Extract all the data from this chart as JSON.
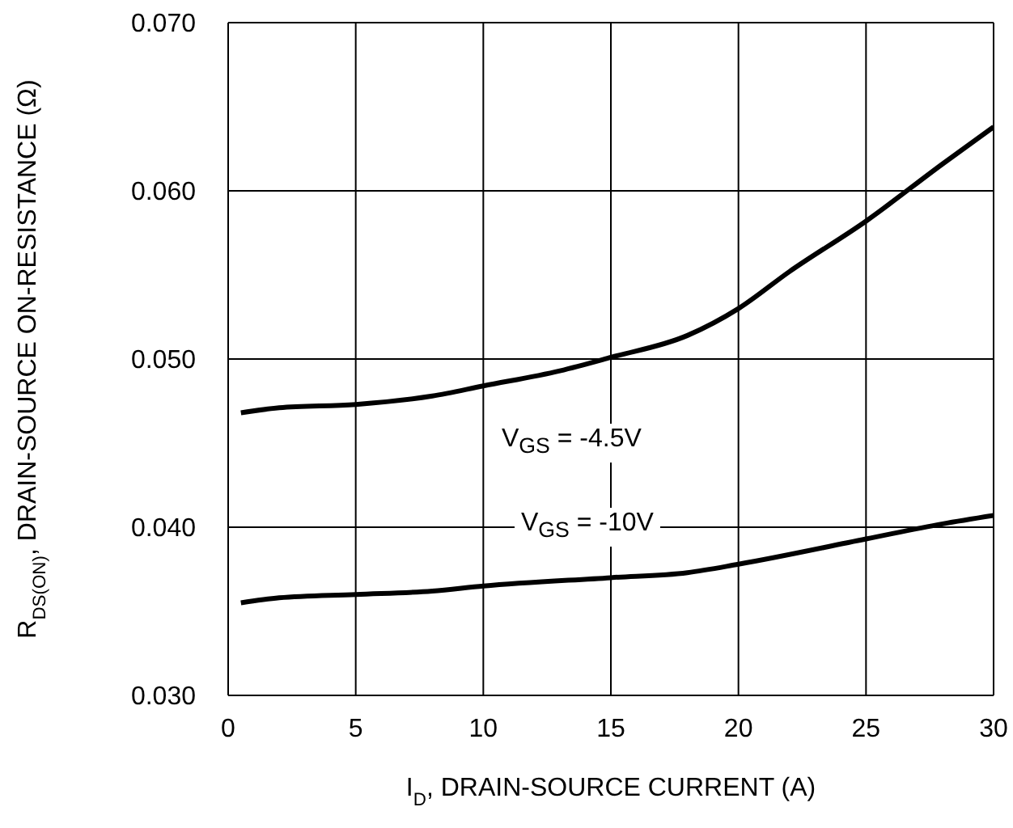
{
  "chart_data": {
    "type": "line",
    "xlabel": "I$_{D}$, DRAIN-SOURCE CURRENT (A)",
    "ylabel": "R$_{DS(ON)}$, DRAIN-SOURCE ON-RESISTANCE (Ω)",
    "xlim": [
      0,
      30
    ],
    "xticks": [
      0,
      5,
      10,
      15,
      20,
      25,
      30
    ],
    "ylim": [
      0.03,
      0.07
    ],
    "yticks": [
      {
        "value": 0.03,
        "label": "0.030"
      },
      {
        "value": 0.04,
        "label": "0.040"
      },
      {
        "value": 0.05,
        "label": "0.050"
      },
      {
        "value": 0.06,
        "label": "0.060"
      },
      {
        "value": 0.07,
        "label": "0.070"
      }
    ],
    "grid": true,
    "marker": "none",
    "line_style": "solid",
    "series": [
      {
        "color": "#000000",
        "x": [
          0.5,
          2,
          5,
          8,
          10,
          13,
          15,
          18,
          20,
          22,
          25,
          28,
          30
        ],
        "values": [
          0.0468,
          0.0471,
          0.0473,
          0.0478,
          0.0484,
          0.0493,
          0.0501,
          0.0514,
          0.053,
          0.0552,
          0.0582,
          0.0616,
          0.0638
        ]
      },
      {
        "color": "#000000",
        "x": [
          0.5,
          2,
          5,
          8,
          10,
          15,
          18,
          20,
          25,
          28,
          30
        ],
        "values": [
          0.0355,
          0.0358,
          0.036,
          0.0362,
          0.0365,
          0.037,
          0.0373,
          0.0378,
          0.0393,
          0.0402,
          0.0407
        ]
      }
    ],
    "annotations": [
      "V$_{GS}$ = -4.5V",
      "V$_{GS}$ = -10V"
    ]
  }
}
